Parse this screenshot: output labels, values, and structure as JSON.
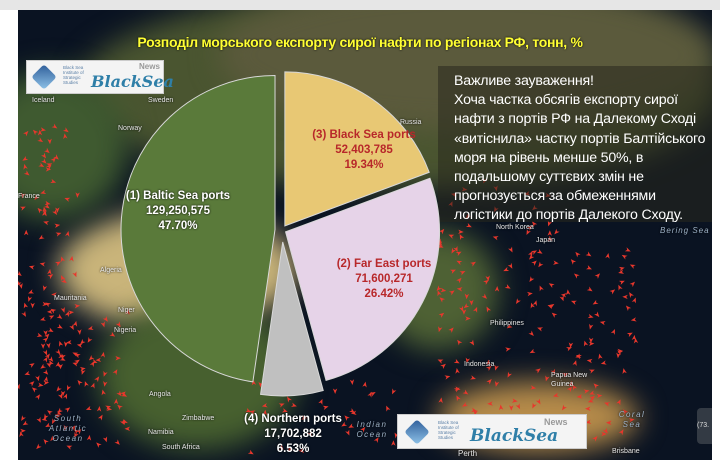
{
  "title": "Розподіл морського експорту сирої нафти по регіонах РФ, тонн, %",
  "logo": {
    "institute_lines": [
      "Black Sea",
      "Institute of",
      "Strategic",
      "Studies"
    ],
    "brand": "BlackSea",
    "news": "News"
  },
  "note": {
    "heading": "Важливе зауваження!",
    "body": "Хоча частка обсягів експорту сирої нафти з портів РФ на Далекому Сході «витіснила» частку портів Балтійського моря на рівень менше 50%, в подальшому суттєвих змін не прогнозується за обмеженнями логістики до портів Далекого Сходу."
  },
  "side_tab": "(73.",
  "map": {
    "labels": [
      "Iceland",
      "Sweden",
      "Norway",
      "Russia",
      "France",
      "Algeria",
      "Mauritania",
      "Niger",
      "Nigeria",
      "Angola",
      "Zimbabwe",
      "Namibia",
      "South Africa",
      "Japan",
      "North Korea",
      "Philippines",
      "Indonesia",
      "Papua New Guinea",
      "Brisbane",
      "Perth"
    ],
    "oceans": [
      "South Atlantic Ocean",
      "Indian Ocean",
      "Coral Sea",
      "Bering Sea"
    ]
  },
  "chart_data": {
    "type": "pie",
    "title": "Розподіл морського експорту сирої нафти по регіонах РФ, тонн, %",
    "slices": [
      {
        "label": "(3) Black Sea ports",
        "value": 52403785,
        "percent_label": "19.34%",
        "value_label": "52,403,785",
        "percent": 19.34,
        "color": "#e8c874",
        "text_color": "#b8282a"
      },
      {
        "label": "(2) Far East ports",
        "value": 71600271,
        "percent_label": "26.42%",
        "value_label": "71,600,271",
        "percent": 26.42,
        "color": "#e6d3e8",
        "text_color": "#b8282a"
      },
      {
        "label": "(4) Northern ports",
        "value": 17702882,
        "percent_label": "6.53%",
        "value_label": "17,702,882",
        "percent": 6.53,
        "color": "#c0c0c0",
        "text_color": "#ffffff"
      },
      {
        "label": "(1) Baltic Sea ports",
        "value": 129250575,
        "percent_label": "47.70%",
        "value_label": "129,250,575",
        "percent": 47.7,
        "color": "#5a7a3a",
        "text_color": "#ffffff"
      }
    ],
    "start": "top",
    "direction": "clockwise",
    "exploded": true
  }
}
